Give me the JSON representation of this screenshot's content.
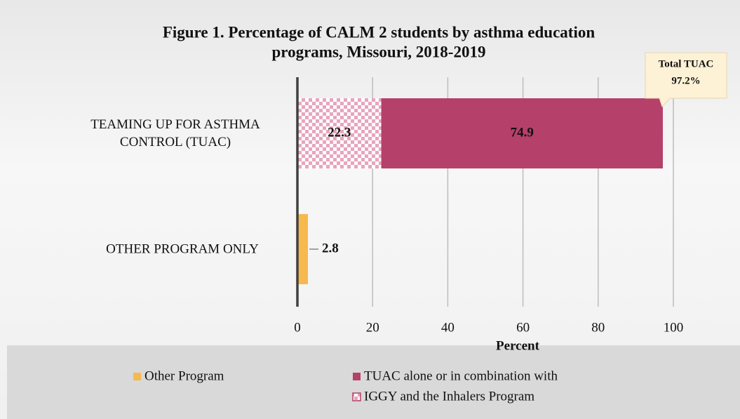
{
  "chart_data": {
    "type": "stacked-barh",
    "title": [
      "Figure 1. Percentage of CALM 2 students by asthma education",
      "programs, Missouri, 2018-2019"
    ],
    "categories": [
      "TEAMING UP FOR ASTHMA CONTROL (TUAC)",
      "OTHER PROGRAM ONLY"
    ],
    "series": [
      {
        "name": "Other Program",
        "color": "#f6b94e",
        "values": [
          null,
          2.8
        ]
      },
      {
        "name": "TUAC alone or in combination with",
        "color": "#b5406a",
        "values": [
          null,
          null
        ]
      },
      {
        "name": "IGGY and the Inhalers Program",
        "color": "#e8a5bd",
        "pattern": "checkerboard",
        "values": [
          22.3,
          null
        ]
      },
      {
        "name": null,
        "color": "#b5406a",
        "values": [
          74.9,
          null
        ]
      }
    ],
    "xlabel": "Percent",
    "xlim": [
      0,
      100
    ],
    "xticks": [
      0,
      20,
      40,
      60,
      80,
      100
    ],
    "grid": true,
    "annotation": [
      "Total TUAC",
      "97.2%"
    ]
  }
}
